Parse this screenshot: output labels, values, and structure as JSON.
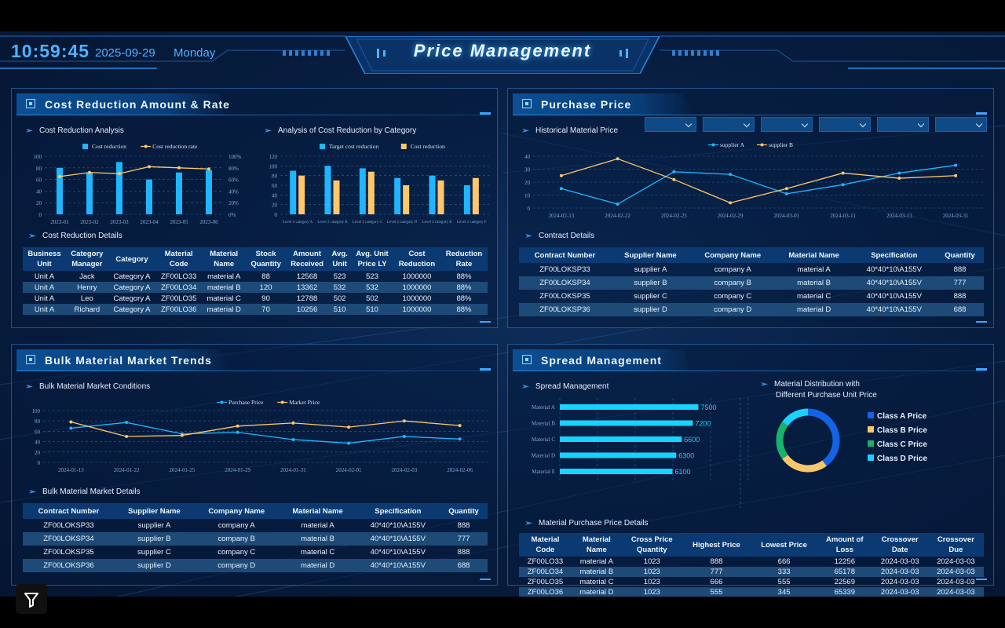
{
  "header": {
    "time": "10:59:45",
    "date": "2025-09-29",
    "weekday": "Monday",
    "title": "Price Management"
  },
  "panels": {
    "cost": {
      "title": "Cost Reduction Amount & Rate",
      "analysis_label": "Cost Reduction Analysis",
      "category_label": "Analysis of Cost Reduction by Category",
      "details_label": "Cost Reduction Details",
      "table": {
        "headers": [
          [
            "Business",
            "Unit"
          ],
          [
            "Category",
            "Manager"
          ],
          [
            "Category"
          ],
          [
            "Material",
            "Code"
          ],
          [
            "Material",
            "Name"
          ],
          [
            "Stock",
            "Quantity"
          ],
          [
            "Amount",
            "Received"
          ],
          [
            "Avg.",
            "Unit"
          ],
          [
            "Avg. Unit",
            "Price LY"
          ],
          [
            "Cost",
            "Reduction"
          ],
          [
            "Reduction",
            "Rate"
          ]
        ],
        "rows": [
          [
            "Unit A",
            "Jack",
            "Category A",
            "ZF00LO33",
            "material A",
            "88",
            "12568",
            "523",
            "523",
            "1000000",
            "88%"
          ],
          [
            "Unit A",
            "Henry",
            "Category A",
            "ZF00LO34",
            "material B",
            "120",
            "13362",
            "532",
            "532",
            "1000000",
            "88%"
          ],
          [
            "Unit A",
            "Leo",
            "Category A",
            "ZF00LO35",
            "material C",
            "90",
            "12788",
            "502",
            "502",
            "1000000",
            "88%"
          ],
          [
            "Unit A",
            "Richard",
            "Category A",
            "ZF00LO36",
            "material D",
            "70",
            "10256",
            "510",
            "510",
            "1000000",
            "88%"
          ]
        ]
      }
    },
    "purchase": {
      "title": "Purchase Price",
      "historical_label": "Historical Material Price",
      "contract_label": "Contract Details",
      "dropdowns": [
        "",
        "",
        "",
        "",
        "",
        ""
      ],
      "table": {
        "headers": [
          "Contract Number",
          "Supplier Name",
          "Company Name",
          "Material Name",
          "Specification",
          "Quantity"
        ],
        "rows": [
          [
            "ZF00LOKSP33",
            "supplier A",
            "company A",
            "material A",
            "40*40*10\\A155V",
            "888"
          ],
          [
            "ZF00LOKSP34",
            "supplier B",
            "company B",
            "material B",
            "40*40*10\\A155V",
            "777"
          ],
          [
            "ZF00LOKSP35",
            "supplier C",
            "company C",
            "material C",
            "40*40*10\\A155V",
            "888"
          ],
          [
            "ZF00LOKSP36",
            "supplier D",
            "company D",
            "material D",
            "40*40*10\\A155V",
            "688"
          ]
        ]
      }
    },
    "bulk": {
      "title": "Bulk Material Market Trends",
      "conditions_label": "Bulk Material Market Conditions",
      "details_label": "Bulk Material Market Details",
      "table": {
        "headers": [
          "Contract Number",
          "Supplier Name",
          "Company Name",
          "Material Name",
          "Specification",
          "Quantity"
        ],
        "rows": [
          [
            "ZF00LOKSP33",
            "supplier A",
            "company A",
            "material A",
            "40*40*10\\A155V",
            "888"
          ],
          [
            "ZF00LOKSP34",
            "supplier B",
            "company B",
            "material B",
            "40*40*10\\A155V",
            "777"
          ],
          [
            "ZF00LOKSP35",
            "supplier C",
            "company C",
            "material C",
            "40*40*10\\A155V",
            "888"
          ],
          [
            "ZF00LOKSP36",
            "supplier D",
            "company D",
            "material D",
            "40*40*10\\A155V",
            "688"
          ]
        ]
      }
    },
    "spread": {
      "title": "Spread Management",
      "spread_label": "Spread Management",
      "distribution_label_1": "Material Distribution with",
      "distribution_label_2": "Different Purchase Unit Price",
      "details_label": "Material Purchase Price Details",
      "table": {
        "headers": [
          [
            "Material",
            "Code"
          ],
          [
            "Material",
            "Name"
          ],
          [
            "Cross Price",
            "Quantity"
          ],
          [
            "Highest Price"
          ],
          [
            "Lowest Price"
          ],
          [
            "Amount of",
            "Loss"
          ],
          [
            "Crossover",
            "Date"
          ],
          [
            "Crossover",
            "Due"
          ]
        ],
        "rows": [
          [
            "ZF00LO33",
            "material A",
            "1023",
            "888",
            "666",
            "12256",
            "2024-03-03",
            "2024-03-03"
          ],
          [
            "ZF00LO34",
            "material B",
            "1023",
            "777",
            "333",
            "65178",
            "2024-03-03",
            "2024-03-03"
          ],
          [
            "ZF00LO35",
            "material C",
            "1023",
            "666",
            "555",
            "22569",
            "2024-03-03",
            "2024-03-03"
          ],
          [
            "ZF00LO36",
            "material D",
            "1023",
            "555",
            "345",
            "65339",
            "2024-03-03",
            "2024-03-03"
          ]
        ]
      }
    }
  },
  "colors": {
    "blue": "#1fb6ff",
    "orange": "#ffc76b",
    "cyan": "#17d3ff",
    "classA": "#1363e6",
    "classB": "#f8c76b",
    "classC": "#19b26a",
    "classD": "#19d3ff"
  },
  "chart_data": [
    {
      "id": "cost-reduction-analysis",
      "type": "bar",
      "categories": [
        "2023-01",
        "2023-02",
        "2023-03",
        "2023-04",
        "2023-05",
        "2023-06"
      ],
      "series": [
        {
          "name": "Cost reduction",
          "type": "bar",
          "values": [
            80,
            72,
            90,
            60,
            72,
            76
          ]
        },
        {
          "name": "Cost reduction rate",
          "type": "line",
          "axis": "right",
          "values": [
            65,
            72,
            70,
            82,
            80,
            78
          ]
        }
      ],
      "ylim": [
        0,
        100
      ],
      "yticks": [
        "0",
        "20",
        "40",
        "60",
        "80",
        "100"
      ],
      "y2ticks": [
        "0%",
        "20%",
        "40%",
        "60%",
        "80%",
        "100%"
      ],
      "grid": true,
      "legend": "top"
    },
    {
      "id": "cost-reduction-by-category",
      "type": "bar",
      "categories": [
        "Level 2 category A",
        "Level 2 category B",
        "Level 2 category C",
        "Level 2 category D",
        "Level 2 category E",
        "Level 2 category F"
      ],
      "series": [
        {
          "name": "Target cost reduction",
          "values": [
            90,
            100,
            95,
            75,
            80,
            60
          ]
        },
        {
          "name": "Cost reduction",
          "values": [
            80,
            70,
            88,
            60,
            70,
            75
          ]
        }
      ],
      "ylim": [
        0,
        120
      ],
      "yticks": [
        "0",
        "20",
        "40",
        "60",
        "80",
        "100",
        "120"
      ],
      "grid": true,
      "legend": "top"
    },
    {
      "id": "historical-material-price",
      "type": "line",
      "categories": [
        "2024-02-13",
        "2024-02-22",
        "2024-02-25",
        "2024-02-29",
        "2024-03-01",
        "2024-03-11",
        "2024-03-13",
        "2024-03-31"
      ],
      "series": [
        {
          "name": "supplier A",
          "values": [
            15,
            3,
            28,
            26,
            11,
            18,
            27,
            33
          ]
        },
        {
          "name": "supplier B",
          "values": [
            25,
            38,
            22,
            4,
            15,
            27,
            23,
            25
          ]
        }
      ],
      "ylim": [
        0,
        40
      ],
      "yticks": [
        "0",
        "10",
        "20",
        "30",
        "40"
      ],
      "grid": true,
      "legend": "top"
    },
    {
      "id": "bulk-material-market-conditions",
      "type": "line",
      "categories": [
        "2024-01-13",
        "2024-01-22",
        "2024-01-25",
        "2024-01-29",
        "2024-01-31",
        "2024-02-01",
        "2024-02-03",
        "2024-02-06"
      ],
      "series": [
        {
          "name": "Purchase Price",
          "values": [
            66,
            77,
            55,
            58,
            44,
            37,
            50,
            45
          ]
        },
        {
          "name": "Market Price",
          "values": [
            78,
            50,
            52,
            70,
            76,
            68,
            80,
            71
          ]
        }
      ],
      "ylim": [
        0,
        100
      ],
      "yticks": [
        "0",
        "20",
        "40",
        "60",
        "80",
        "100"
      ],
      "grid": true,
      "legend": "top"
    },
    {
      "id": "spread-management",
      "type": "bar",
      "orientation": "horizontal",
      "categories": [
        "Material A",
        "Material B",
        "Material C",
        "Material D",
        "Material E"
      ],
      "values": [
        7500,
        7200,
        6600,
        6300,
        6100
      ]
    },
    {
      "id": "material-distribution",
      "type": "pie",
      "labels": [
        "Class A Price",
        "Class B Price",
        "Class C Price",
        "Class D Price"
      ],
      "values": [
        40,
        25,
        20,
        15
      ]
    }
  ]
}
